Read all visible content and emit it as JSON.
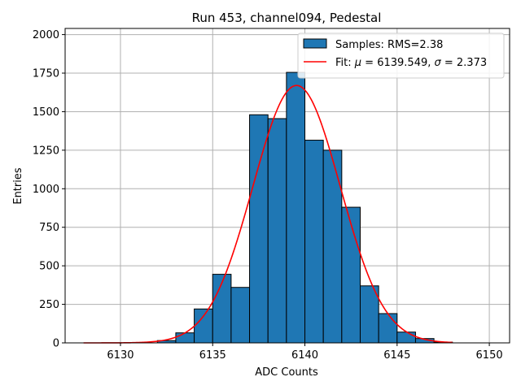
{
  "chart_data": {
    "type": "bar",
    "title": "Run 453, channel094, Pedestal",
    "xlabel": "ADC Counts",
    "ylabel": "Entries",
    "xlim": [
      6127.0,
      6151.1
    ],
    "ylim": [
      0,
      2040
    ],
    "xticks": [
      6130,
      6135,
      6140,
      6145,
      6150
    ],
    "yticks": [
      0,
      250,
      500,
      750,
      1000,
      1250,
      1500,
      1750,
      2000
    ],
    "grid": true,
    "legend_position": "top-right",
    "bin_width": 1,
    "series": [
      {
        "name": "Samples: RMS=2.38",
        "kind": "histogram",
        "color": "#1f77b4",
        "edgecolor": "#000000",
        "bins": [
          {
            "x0": 6132,
            "x1": 6133,
            "value": 15
          },
          {
            "x0": 6133,
            "x1": 6134,
            "value": 65
          },
          {
            "x0": 6134,
            "x1": 6135,
            "value": 220
          },
          {
            "x0": 6135,
            "x1": 6136,
            "value": 445
          },
          {
            "x0": 6136,
            "x1": 6137,
            "value": 360
          },
          {
            "x0": 6137,
            "x1": 6138,
            "value": 1480
          },
          {
            "x0": 6138,
            "x1": 6139,
            "value": 1455
          },
          {
            "x0": 6139,
            "x1": 6140,
            "value": 1755
          },
          {
            "x0": 6140,
            "x1": 6141,
            "value": 1315
          },
          {
            "x0": 6141,
            "x1": 6142,
            "value": 1250
          },
          {
            "x0": 6142,
            "x1": 6143,
            "value": 880
          },
          {
            "x0": 6143,
            "x1": 6144,
            "value": 370
          },
          {
            "x0": 6144,
            "x1": 6145,
            "value": 190
          },
          {
            "x0": 6145,
            "x1": 6146,
            "value": 70
          },
          {
            "x0": 6146,
            "x1": 6147,
            "value": 28
          },
          {
            "x0": 6147,
            "x1": 6148,
            "value": 5
          }
        ]
      },
      {
        "name_prefix": "Fit: ",
        "name_mu_label": "μ",
        "name_mu_value": " = 6139.549, ",
        "name_sigma_label": "σ",
        "name_sigma_value": " = 2.373",
        "kind": "line",
        "color": "#ff0000",
        "fit": {
          "type": "gaussian",
          "mu": 6139.549,
          "sigma": 2.373,
          "amplitude": 1670
        },
        "x_range": [
          6128,
          6148
        ]
      }
    ]
  }
}
